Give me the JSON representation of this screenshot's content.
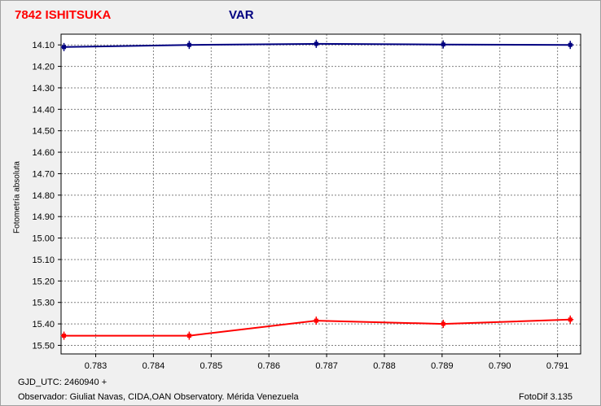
{
  "header": {
    "object_name": "7842 ISHITSUKA",
    "series_label": "VAR"
  },
  "footer": {
    "gjd": "GJD_UTC: 2460940 +",
    "observer": "Observador: Giuliat Navas, CIDA,OAN Observatory. Mérida Venezuela",
    "software": "FotoDif 3.135"
  },
  "chart_data": {
    "type": "line",
    "title": "7842 ISHITSUKA",
    "xlabel": "",
    "ylabel": "Fotometría absoluta",
    "xlim": [
      0.7824,
      0.7914
    ],
    "ylim": [
      15.54,
      14.05
    ],
    "y_inverted": true,
    "x_ticks": [
      0.783,
      0.784,
      0.785,
      0.786,
      0.787,
      0.788,
      0.789,
      0.79,
      0.791
    ],
    "x_tick_labels": [
      "0.783",
      "0.784",
      "0.785",
      "0.786",
      "0.787",
      "0.788",
      "0.789",
      "0.790",
      "0.791"
    ],
    "y_ticks": [
      14.1,
      14.2,
      14.3,
      14.4,
      14.5,
      14.6,
      14.7,
      14.8,
      14.9,
      15.0,
      15.1,
      15.2,
      15.3,
      15.4,
      15.5
    ],
    "y_tick_labels": [
      "14.10",
      "14.20",
      "14.30",
      "14.40",
      "14.50",
      "14.60",
      "14.70",
      "14.80",
      "14.90",
      "15.00",
      "15.10",
      "15.20",
      "15.30",
      "15.40",
      "15.50"
    ],
    "grid": true,
    "series": [
      {
        "color": "#000080",
        "x": [
          0.78245,
          0.78462,
          0.78682,
          0.78902,
          0.79122
        ],
        "y": [
          14.11,
          14.1,
          14.095,
          14.098,
          14.1
        ]
      },
      {
        "color": "#ff0000",
        "x": [
          0.78245,
          0.78462,
          0.78682,
          0.78902,
          0.79122
        ],
        "y": [
          15.455,
          15.455,
          15.385,
          15.4,
          15.38
        ]
      }
    ]
  }
}
